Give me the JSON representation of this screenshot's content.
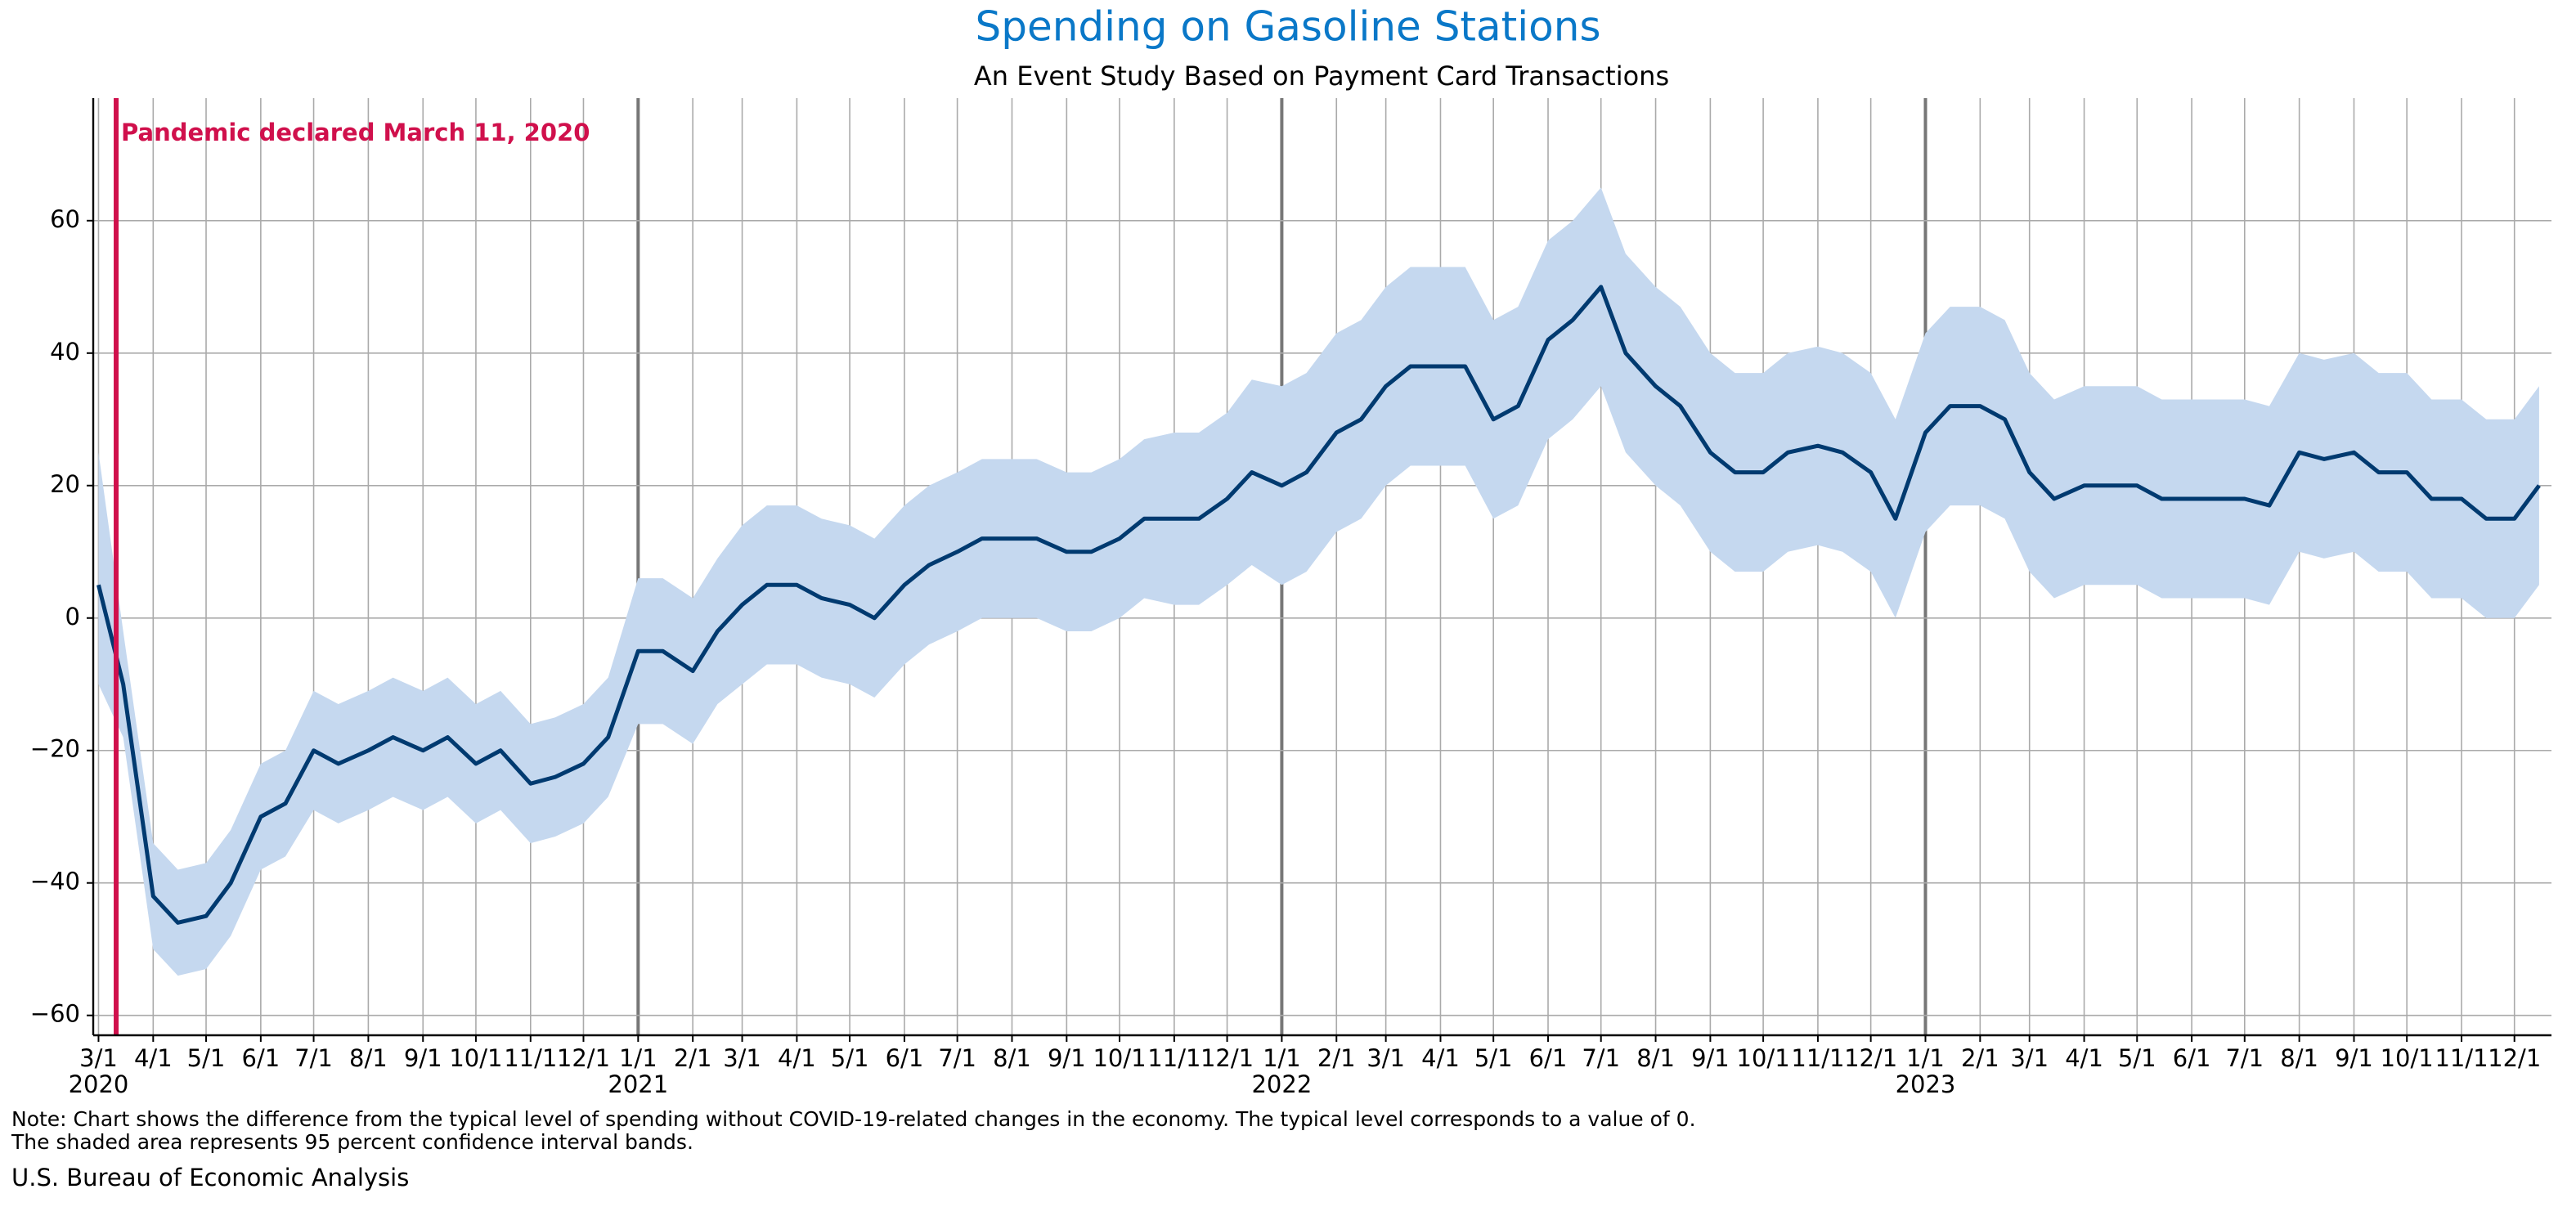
{
  "chart_data": {
    "type": "band-line",
    "title": "Spending on Gasoline Stations",
    "subtitle": "An Event Study Based on Payment Card Transactions",
    "annotation": {
      "label": "Pandemic declared March 11, 2020",
      "x": "2020-03-11",
      "color": "#d0104c"
    },
    "notes": [
      "Note: Chart shows the difference from the typical level of spending without COVID-19-related changes in the economy. The typical level corresponds to a value of 0.",
      "The shaded area represents 95 percent confidence interval bands."
    ],
    "source": "U.S. Bureau of Economic Analysis",
    "line_color": "#003a70",
    "band_color": "#c5d8ef",
    "grid": true,
    "xlim": [
      "2020-02-27",
      "2023-12-22"
    ],
    "ylim": [
      -63,
      78.5
    ],
    "yticks": [
      {
        "value": -60,
        "label": "−60"
      },
      {
        "value": -40,
        "label": "−40"
      },
      {
        "value": -20,
        "label": "−20"
      },
      0,
      20,
      40,
      60
    ],
    "xticks": [
      {
        "value": "2020-03-01",
        "label": "3/1"
      },
      {
        "value": "2020-04-01",
        "label": "4/1"
      },
      {
        "value": "2020-05-01",
        "label": "5/1"
      },
      {
        "value": "2020-06-01",
        "label": "6/1"
      },
      {
        "value": "2020-07-01",
        "label": "7/1"
      },
      {
        "value": "2020-08-01",
        "label": "8/1"
      },
      {
        "value": "2020-09-01",
        "label": "9/1"
      },
      {
        "value": "2020-10-01",
        "label": "10/1"
      },
      {
        "value": "2020-11-01",
        "label": "11/1"
      },
      {
        "value": "2020-12-01",
        "label": "12/1"
      },
      {
        "value": "2021-01-01",
        "label": "1/1"
      },
      {
        "value": "2021-02-01",
        "label": "2/1"
      },
      {
        "value": "2021-03-01",
        "label": "3/1"
      },
      {
        "value": "2021-04-01",
        "label": "4/1"
      },
      {
        "value": "2021-05-01",
        "label": "5/1"
      },
      {
        "value": "2021-06-01",
        "label": "6/1"
      },
      {
        "value": "2021-07-01",
        "label": "7/1"
      },
      {
        "value": "2021-08-01",
        "label": "8/1"
      },
      {
        "value": "2021-09-01",
        "label": "9/1"
      },
      {
        "value": "2021-10-01",
        "label": "10/1"
      },
      {
        "value": "2021-11-01",
        "label": "11/1"
      },
      {
        "value": "2021-12-01",
        "label": "12/1"
      },
      {
        "value": "2022-01-01",
        "label": "1/1"
      },
      {
        "value": "2022-02-01",
        "label": "2/1"
      },
      {
        "value": "2022-03-01",
        "label": "3/1"
      },
      {
        "value": "2022-04-01",
        "label": "4/1"
      },
      {
        "value": "2022-05-01",
        "label": "5/1"
      },
      {
        "value": "2022-06-01",
        "label": "6/1"
      },
      {
        "value": "2022-07-01",
        "label": "7/1"
      },
      {
        "value": "2022-08-01",
        "label": "8/1"
      },
      {
        "value": "2022-09-01",
        "label": "9/1"
      },
      {
        "value": "2022-10-01",
        "label": "10/1"
      },
      {
        "value": "2022-11-01",
        "label": "11/1"
      },
      {
        "value": "2022-12-01",
        "label": "12/1"
      },
      {
        "value": "2023-01-01",
        "label": "1/1"
      },
      {
        "value": "2023-02-01",
        "label": "2/1"
      },
      {
        "value": "2023-03-01",
        "label": "3/1"
      },
      {
        "value": "2023-04-01",
        "label": "4/1"
      },
      {
        "value": "2023-05-01",
        "label": "5/1"
      },
      {
        "value": "2023-06-01",
        "label": "6/1"
      },
      {
        "value": "2023-07-01",
        "label": "7/1"
      },
      {
        "value": "2023-08-01",
        "label": "8/1"
      },
      {
        "value": "2023-09-01",
        "label": "9/1"
      },
      {
        "value": "2023-10-01",
        "label": "10/1"
      },
      {
        "value": "2023-11-01",
        "label": "11/1"
      },
      {
        "value": "2023-12-01",
        "label": "12/1"
      }
    ],
    "year_ticks": [
      {
        "value": "2020-03-01",
        "label": "2020"
      },
      {
        "value": "2021-01-01",
        "label": "2021"
      },
      {
        "value": "2022-01-01",
        "label": "2022"
      },
      {
        "value": "2023-01-01",
        "label": "2023"
      }
    ],
    "x": [
      "2020-03-01",
      "2020-03-15",
      "2020-04-01",
      "2020-04-15",
      "2020-05-01",
      "2020-05-15",
      "2020-06-01",
      "2020-06-15",
      "2020-07-01",
      "2020-07-15",
      "2020-08-01",
      "2020-08-15",
      "2020-09-01",
      "2020-09-15",
      "2020-10-01",
      "2020-10-15",
      "2020-11-01",
      "2020-11-15",
      "2020-12-01",
      "2020-12-15",
      "2021-01-01",
      "2021-01-15",
      "2021-02-01",
      "2021-02-15",
      "2021-03-01",
      "2021-03-15",
      "2021-04-01",
      "2021-04-15",
      "2021-05-01",
      "2021-05-15",
      "2021-06-01",
      "2021-06-15",
      "2021-07-01",
      "2021-07-15",
      "2021-08-01",
      "2021-08-15",
      "2021-09-01",
      "2021-09-15",
      "2021-10-01",
      "2021-10-15",
      "2021-11-01",
      "2021-11-15",
      "2021-12-01",
      "2021-12-15",
      "2022-01-01",
      "2022-01-15",
      "2022-02-01",
      "2022-02-15",
      "2022-03-01",
      "2022-03-15",
      "2022-04-01",
      "2022-04-15",
      "2022-05-01",
      "2022-05-15",
      "2022-06-01",
      "2022-06-15",
      "2022-07-01",
      "2022-07-15",
      "2022-08-01",
      "2022-08-15",
      "2022-09-01",
      "2022-09-15",
      "2022-10-01",
      "2022-10-15",
      "2022-11-01",
      "2022-11-15",
      "2022-12-01",
      "2022-12-15",
      "2023-01-01",
      "2023-01-15",
      "2023-02-01",
      "2023-02-15",
      "2023-03-01",
      "2023-03-15",
      "2023-04-01",
      "2023-04-15",
      "2023-05-01",
      "2023-05-15",
      "2023-06-01",
      "2023-06-15",
      "2023-07-01",
      "2023-07-15",
      "2023-08-01",
      "2023-08-15",
      "2023-09-01",
      "2023-09-15",
      "2023-10-01",
      "2023-10-15",
      "2023-11-01",
      "2023-11-15",
      "2023-12-01",
      "2023-12-15"
    ],
    "values": [
      5,
      -10,
      -42,
      -46,
      -45,
      -40,
      -30,
      -28,
      -20,
      -22,
      -20,
      -18,
      -20,
      -18,
      -22,
      -20,
      -25,
      -24,
      -22,
      -18,
      -5,
      -5,
      -8,
      -2,
      2,
      5,
      5,
      3,
      2,
      0,
      5,
      8,
      10,
      12,
      12,
      12,
      10,
      10,
      12,
      15,
      15,
      15,
      18,
      22,
      20,
      22,
      28,
      30,
      35,
      38,
      38,
      38,
      30,
      32,
      42,
      45,
      50,
      40,
      35,
      32,
      25,
      22,
      22,
      25,
      26,
      25,
      22,
      15,
      28,
      32,
      32,
      30,
      22,
      18,
      20,
      20,
      20,
      18,
      18,
      18,
      18,
      17,
      25,
      24,
      25,
      22,
      22,
      18,
      18,
      15,
      15,
      20
    ],
    "lower": [
      -10,
      -18,
      -50,
      -54,
      -53,
      -48,
      -38,
      -36,
      -29,
      -31,
      -29,
      -27,
      -29,
      -27,
      -31,
      -29,
      -34,
      -33,
      -31,
      -27,
      -16,
      -16,
      -19,
      -13,
      -10,
      -7,
      -7,
      -9,
      -10,
      -12,
      -7,
      -4,
      -2,
      0,
      0,
      0,
      -2,
      -2,
      0,
      3,
      2,
      2,
      5,
      8,
      5,
      7,
      13,
      15,
      20,
      23,
      23,
      23,
      15,
      17,
      27,
      30,
      35,
      25,
      20,
      17,
      10,
      7,
      7,
      10,
      11,
      10,
      7,
      0,
      13,
      17,
      17,
      15,
      7,
      3,
      5,
      5,
      5,
      3,
      3,
      3,
      3,
      2,
      10,
      9,
      10,
      7,
      7,
      3,
      3,
      0,
      0,
      5
    ],
    "upper": [
      25,
      -2,
      -34,
      -38,
      -37,
      -32,
      -22,
      -20,
      -11,
      -13,
      -11,
      -9,
      -11,
      -9,
      -13,
      -11,
      -16,
      -15,
      -13,
      -9,
      6,
      6,
      3,
      9,
      14,
      17,
      17,
      15,
      14,
      12,
      17,
      20,
      22,
      24,
      24,
      24,
      22,
      22,
      24,
      27,
      28,
      28,
      31,
      36,
      35,
      37,
      43,
      45,
      50,
      53,
      53,
      53,
      45,
      47,
      57,
      60,
      65,
      55,
      50,
      47,
      40,
      37,
      37,
      40,
      41,
      40,
      37,
      30,
      43,
      47,
      47,
      45,
      37,
      33,
      35,
      35,
      35,
      33,
      33,
      33,
      33,
      32,
      40,
      39,
      40,
      37,
      37,
      33,
      33,
      30,
      30,
      35
    ]
  }
}
